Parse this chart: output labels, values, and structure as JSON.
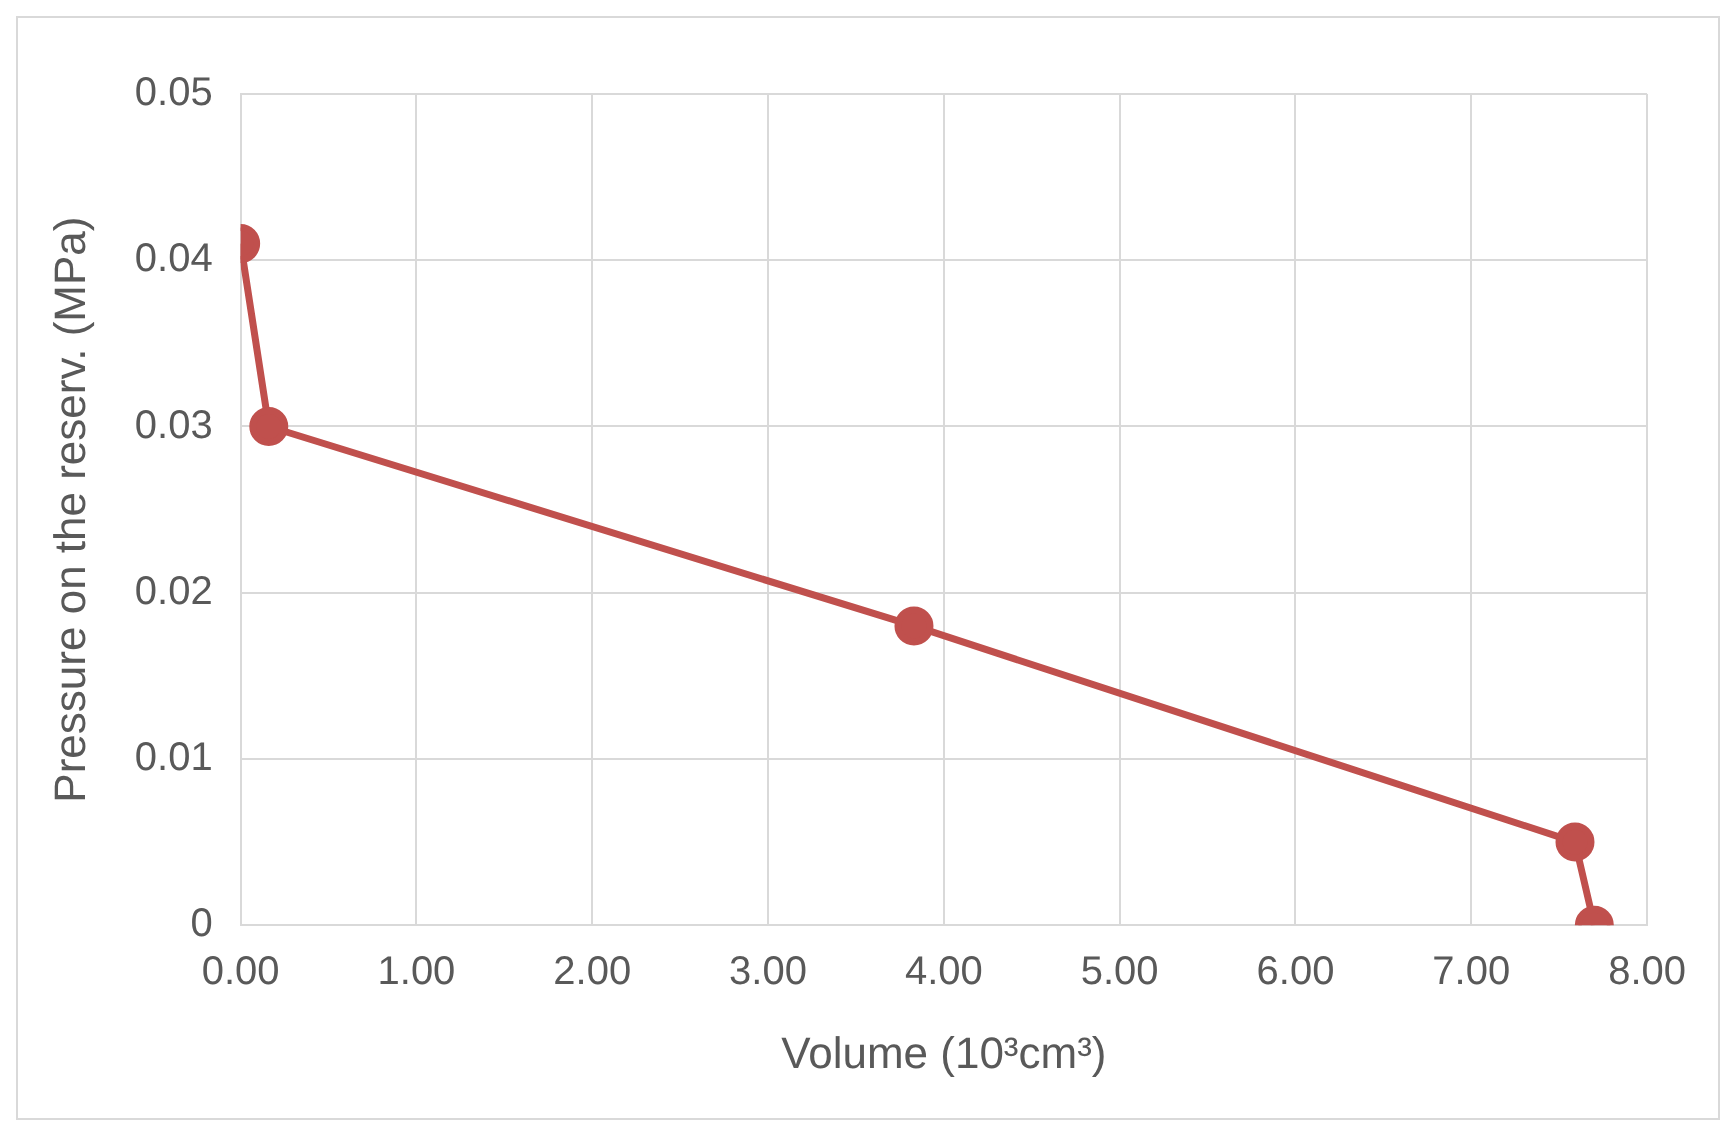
{
  "chart_data": {
    "type": "line",
    "xlabel": "Volume (10³cm³)",
    "ylabel": "Pressure on the reserv. (MPa)",
    "x": [
      0,
      0.16,
      3.83,
      7.59,
      7.7
    ],
    "series": [
      {
        "color": "#c0504d",
        "values": [
          0.041,
          0.03,
          0.018,
          0.005,
          0
        ]
      }
    ],
    "xlim": [
      0,
      8
    ],
    "xticks": [
      {
        "value": 0,
        "label": "0.00"
      },
      {
        "value": 1,
        "label": "1.00"
      },
      {
        "value": 2,
        "label": "2.00"
      },
      {
        "value": 3,
        "label": "3.00"
      },
      {
        "value": 4,
        "label": "4.00"
      },
      {
        "value": 5,
        "label": "5.00"
      },
      {
        "value": 6,
        "label": "6.00"
      },
      {
        "value": 7,
        "label": "7.00"
      },
      {
        "value": 8,
        "label": "8.00"
      }
    ],
    "ylim": [
      0,
      0.05
    ],
    "yticks": [
      0,
      0.01,
      0.02,
      0.03,
      0.04,
      0.05
    ],
    "grid": true,
    "marker": "circle",
    "line_style": "solid"
  }
}
